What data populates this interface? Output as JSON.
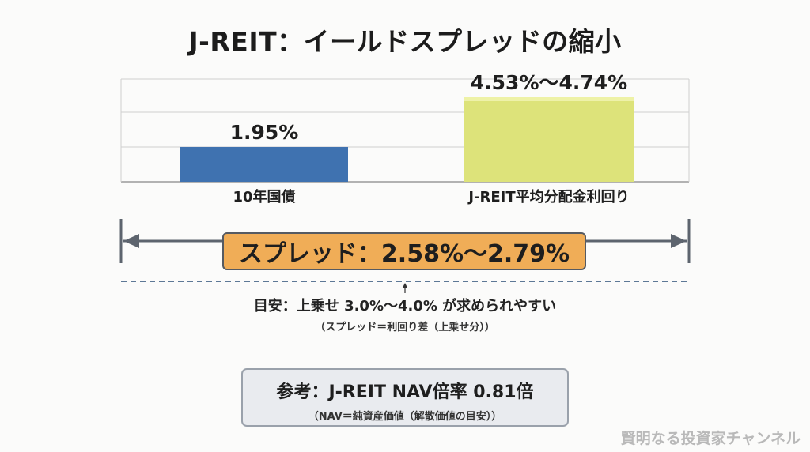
{
  "title": "J-REIT：イールドスプレッドの縮小",
  "chart_data": {
    "type": "bar",
    "categories": [
      "10年国債",
      "J-REIT平均分配金利回り"
    ],
    "series": [
      {
        "values": [
          1.95,
          [
            4.53,
            4.74
          ]
        ]
      }
    ],
    "data_labels": [
      "1.95%",
      "4.53%〜4.74%"
    ],
    "ylim": [
      0,
      5
    ],
    "grid": true,
    "colors": {
      "bond": "#3f72b0",
      "reit": "#dde37a",
      "reit_cap": "#eef2a6"
    }
  },
  "spread": {
    "label": "スプレッド：2.58%〜2.79%",
    "box_color": "#f0ad57"
  },
  "note": {
    "main": "目安：上乗せ 3.0%〜4.0% が求められやすい",
    "sub": "（スプレッド＝利回り差（上乗せ分））"
  },
  "reference": {
    "main": "参考：J-REIT NAV倍率 0.81倍",
    "sub": "（NAV＝純資産価値（解散価値の目安））"
  },
  "brand": "賢明なる投資家チャンネル"
}
